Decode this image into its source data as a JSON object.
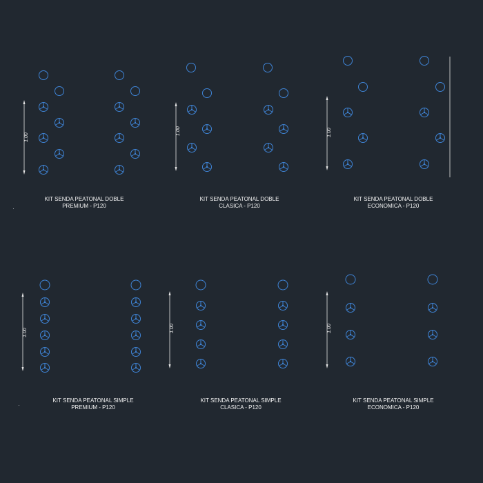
{
  "drawing": {
    "background": "#212830",
    "symbol_color": "#3f84d6",
    "line_color": "#e6e6e6",
    "panels": [
      {
        "line1": "KIT SENDA PEATONAL DOBLE",
        "line2": "PREMIUM  - P120",
        "dimension": "1.00"
      },
      {
        "line1": "KIT SENDA PEATONAL DOBLE",
        "line2": "CLASICA - P120",
        "dimension": "1.00"
      },
      {
        "line1": "KIT SENDA PEATONAL DOBLE",
        "line2": "ECONOMICA - P120",
        "dimension": "1.00"
      },
      {
        "line1": "KIT SENDA PEATONAL SIMPLE",
        "line2": "PREMIUM - P120",
        "dimension": "1.00"
      },
      {
        "line1": "KIT SENDA PEATONAL SIMPLE",
        "line2": "CLASICA - P120",
        "dimension": "1.00"
      },
      {
        "line1": "KIT SENDA PEATONAL SIMPLE",
        "line2": "ECONOMICA - P120",
        "dimension": "1.00"
      }
    ]
  }
}
